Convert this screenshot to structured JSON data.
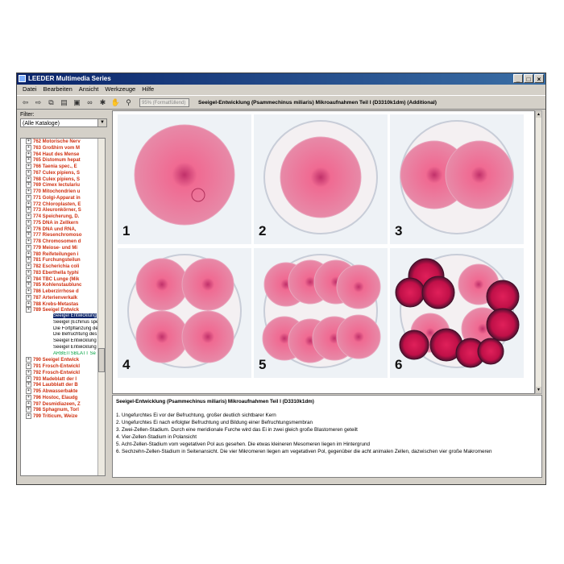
{
  "window": {
    "title": "LEEDER Multimedia Series",
    "controls": [
      "_",
      "□",
      "×"
    ]
  },
  "menu": [
    "Datei",
    "Bearbeiten",
    "Ansicht",
    "Werkzeuge",
    "Hilfe"
  ],
  "toolbar": {
    "zoom_placeholder": "95% (Formatfüllend)",
    "document_title": "Seeigel-Entwicklung (Psammechinus miliaris) Mikroaufnahmen Teil I  (D3310k1dm) (Additional)"
  },
  "filter": {
    "label": "Filter:",
    "value": "(Alle Kataloge)"
  },
  "tree": [
    {
      "text": "762  Motorische Nerv"
    },
    {
      "text": "763  Großhirn vom M"
    },
    {
      "text": "764  Haut des Mense"
    },
    {
      "text": "765  Distomum hepat"
    },
    {
      "text": "766  Taenia spec., E"
    },
    {
      "text": "767  Culex pipiens, S"
    },
    {
      "text": "768  Culex pipiens, S"
    },
    {
      "text": "769  Cimex lectulariu"
    },
    {
      "text": "770  Mitochondrien u"
    },
    {
      "text": "771  Golgi-Apparat in"
    },
    {
      "text": "772  Chloroplasten, E"
    },
    {
      "text": "773  Aleuronkörner, S"
    },
    {
      "text": "774  Speicherung, D."
    },
    {
      "text": "775  DNA in Zellkern"
    },
    {
      "text": "776  DNA und RNA, "
    },
    {
      "text": "777  Riesenchromoso"
    },
    {
      "text": "778  Chromosomen d"
    },
    {
      "text": "779  Meiose- und Mi"
    },
    {
      "text": "780  Reifeteilungen i"
    },
    {
      "text": "781  Furchungsteilun"
    },
    {
      "text": "782  Escherichia coli"
    },
    {
      "text": "783  Eberthella typhi"
    },
    {
      "text": "784  TBC Lunge (Mik"
    },
    {
      "text": "785  Kohlenstaublunc"
    },
    {
      "text": "786  Leberzirrhose d"
    },
    {
      "text": "787  Arterienverkalk"
    },
    {
      "text": "788  Krebs-Metastas"
    },
    {
      "text": "789  Seeigel Entwick"
    },
    {
      "text": "Seeigel Entwicklung",
      "sub": true,
      "selected": true
    },
    {
      "text": "Seeigel (Echinus spe",
      "sub": true
    },
    {
      "text": "Die Fortpflanzung des",
      "sub": true
    },
    {
      "text": "Die Befruchtung des",
      "sub": true
    },
    {
      "text": "Seeigel Entwicklung",
      "sub": true
    },
    {
      "text": "Seeigel Entwicklung",
      "sub": true
    },
    {
      "text": "ARBEITSBLATT Se",
      "sub": true,
      "green": true
    },
    {
      "text": "790  Seeigel Entwick"
    },
    {
      "text": "791  Frosch-Entwickl"
    },
    {
      "text": "792  Frosch-Entwickl"
    },
    {
      "text": "793  Madeblatt der I"
    },
    {
      "text": "794  Laubblatt der B"
    },
    {
      "text": "795  Abwasserbakte"
    },
    {
      "text": "796  Hostoc, Elaudg"
    },
    {
      "text": "797  Desmidiazeen, Z"
    },
    {
      "text": "798  Sphagnum, Torl"
    },
    {
      "text": "799  Triticum, Weize"
    }
  ],
  "panels": [
    {
      "number": "1"
    },
    {
      "number": "2"
    },
    {
      "number": "3"
    },
    {
      "number": "4"
    },
    {
      "number": "5"
    },
    {
      "number": "6"
    }
  ],
  "caption": {
    "title": "Seeigel-Entwicklung (Psammechinus miliaris) Mikroaufnahmen Teil I  (D3310k1dm)",
    "lines": [
      "1.  Ungefurchtes Ei vor der Befruchtung, großer deutlich sichtbarer Kern",
      "2.  Ungefurchtes Ei nach erfolgter Befruchtung und Bildung einer Befruchtungsmembran",
      "3.  Zwei-Zellen-Stadium. Durch eine meridionale Furche wird das Ei in zwei gleich große Blastomeren geteilt",
      "4.  Vier-Zellen-Stadium in Polansicht",
      "5.  Acht-Zellen-Stadium vom vegetativen Pol aus gesehen. Die etwas kleineren Mesomeren liegen im Hintergrund",
      "6.  Sechzehn-Zellen-Stadium in Seitenansicht. Die vier Mikromeren liegen am vegetativen Pol, gegenüber die acht animalen Zellen, dazwischen vier große Makromeren"
    ]
  },
  "colors": {
    "accent": "#0a246a",
    "tree_red": "#d03010",
    "cell_pink": "#e8608a"
  }
}
